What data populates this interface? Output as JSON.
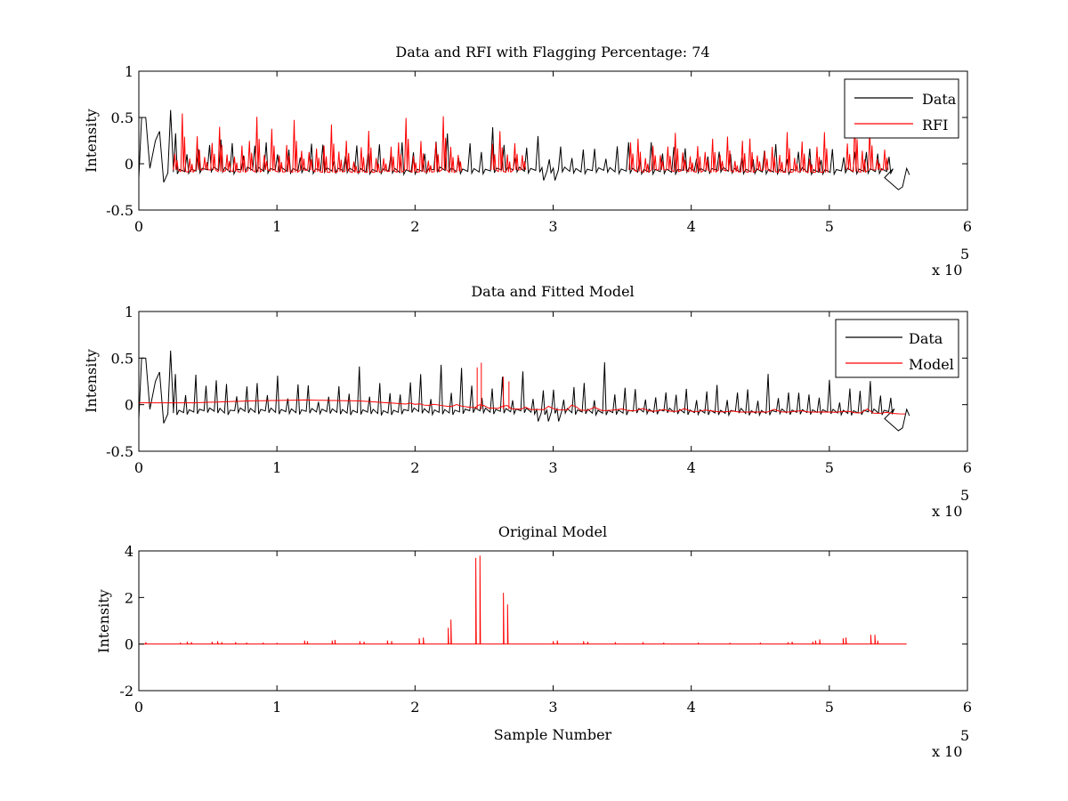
{
  "chart_data": [
    {
      "type": "line",
      "title": "Data and RFI with Flagging Percentage: 74",
      "xlabel": "",
      "ylabel": "Intensity",
      "xlim": [
        0,
        600000
      ],
      "ylim": [
        -0.5,
        1
      ],
      "xticks": [
        0,
        100000,
        200000,
        300000,
        400000,
        500000,
        600000
      ],
      "xtick_labels": [
        "0",
        "1",
        "2",
        "3",
        "4",
        "5",
        "6"
      ],
      "yticks": [
        -0.5,
        0,
        0.5,
        1
      ],
      "ytick_labels": [
        "-0.5",
        "0",
        "0.5",
        "1"
      ],
      "x_exponent_label": "x 10",
      "x_exponent_power": "5",
      "legend": "top-right",
      "grid": false,
      "series": [
        {
          "name": "Data",
          "color": "#000000",
          "points": [
            [
              0,
              -0.15
            ],
            [
              2000,
              0.5
            ],
            [
              5000,
              0.5
            ],
            [
              8000,
              -0.05
            ],
            [
              12000,
              0.25
            ],
            [
              15000,
              0.35
            ],
            [
              18000,
              -0.2
            ],
            [
              21000,
              -0.1
            ],
            [
              23000,
              0.58
            ],
            [
              25000,
              -0.05
            ],
            [
              240000,
              -0.1
            ],
            [
              260000,
              -0.08
            ],
            [
              270000,
              -0.1
            ],
            [
              285000,
              -0.05
            ],
            [
              288000,
              -0.18
            ],
            [
              292000,
              -0.2
            ],
            [
              300000,
              -0.1
            ],
            [
              330000,
              -0.12
            ],
            [
              340000,
              -0.1
            ],
            [
              355000,
              -0.1
            ],
            [
              540000,
              -0.15
            ],
            [
              550000,
              -0.28
            ],
            [
              553000,
              -0.25
            ],
            [
              556000,
              -0.05
            ],
            [
              558000,
              -0.12
            ]
          ],
          "spike_interval": 8200,
          "spike_heights": [
            0.3,
            0.15,
            0.25,
            0.2,
            0.35,
            0.28,
            0.18,
            0.22
          ]
        },
        {
          "name": "RFI",
          "color": "#ff0000",
          "segments": [
            [
              25000,
              235000
            ],
            [
              255000,
              280000
            ],
            [
              355000,
              500000
            ],
            [
              512000,
              540000
            ]
          ],
          "baseline": -0.08,
          "spike_interval": 5400,
          "spike_heights": [
            0.25,
            0.5,
            0.2,
            0.35,
            0.15,
            0.3,
            0.45,
            0.22,
            0.18,
            0.28
          ]
        }
      ]
    },
    {
      "type": "line",
      "title": "Data and Fitted Model",
      "xlabel": "",
      "ylabel": "Intensity",
      "xlim": [
        0,
        600000
      ],
      "ylim": [
        -0.5,
        1
      ],
      "xticks": [
        0,
        100000,
        200000,
        300000,
        400000,
        500000,
        600000
      ],
      "xtick_labels": [
        "0",
        "1",
        "2",
        "3",
        "4",
        "5",
        "6"
      ],
      "yticks": [
        -0.5,
        0,
        0.5,
        1
      ],
      "ytick_labels": [
        "-0.5",
        "0",
        "0.5",
        "1"
      ],
      "x_exponent_label": "x 10",
      "x_exponent_power": "5",
      "legend": "top-right",
      "grid": false,
      "series": [
        {
          "name": "Data",
          "color": "#000000",
          "points": [
            [
              0,
              -0.15
            ],
            [
              2000,
              0.5
            ],
            [
              5000,
              0.5
            ],
            [
              8000,
              -0.05
            ],
            [
              12000,
              0.25
            ],
            [
              15000,
              0.35
            ],
            [
              18000,
              -0.2
            ],
            [
              21000,
              -0.1
            ],
            [
              23000,
              0.58
            ],
            [
              25000,
              -0.05
            ],
            [
              240000,
              -0.1
            ],
            [
              260000,
              -0.08
            ],
            [
              270000,
              -0.1
            ],
            [
              285000,
              -0.05
            ],
            [
              288000,
              -0.18
            ],
            [
              292000,
              -0.2
            ],
            [
              300000,
              -0.1
            ],
            [
              330000,
              -0.12
            ],
            [
              340000,
              -0.1
            ],
            [
              355000,
              -0.1
            ],
            [
              540000,
              -0.15
            ],
            [
              550000,
              -0.28
            ],
            [
              553000,
              -0.25
            ],
            [
              556000,
              -0.05
            ],
            [
              558000,
              -0.12
            ]
          ],
          "spike_interval": 7400,
          "spike_heights": [
            0.3,
            0.15,
            0.42,
            0.2,
            0.35,
            0.28,
            0.18,
            0.22
          ]
        },
        {
          "name": "Model",
          "color": "#ff0000",
          "points": [
            [
              0,
              0.02
            ],
            [
              40000,
              0.02
            ],
            [
              80000,
              0.04
            ],
            [
              120000,
              0.05
            ],
            [
              160000,
              0.04
            ],
            [
              200000,
              0.0
            ],
            [
              240000,
              -0.03
            ],
            [
              280000,
              -0.05
            ],
            [
              320000,
              -0.06
            ],
            [
              380000,
              -0.07
            ],
            [
              440000,
              -0.08
            ],
            [
              500000,
              -0.08
            ],
            [
              555000,
              -0.1
            ]
          ],
          "peaks": [
            [
              245000,
              0.4
            ],
            [
              248000,
              0.45
            ],
            [
              264000,
              0.3
            ],
            [
              268000,
              0.25
            ]
          ]
        }
      ]
    },
    {
      "type": "line",
      "title": "Original Model",
      "xlabel": "Sample Number",
      "ylabel": "Intensity",
      "xlim": [
        0,
        600000
      ],
      "ylim": [
        -2,
        4
      ],
      "xticks": [
        0,
        100000,
        200000,
        300000,
        400000,
        500000,
        600000
      ],
      "xtick_labels": [
        "0",
        "1",
        "2",
        "3",
        "4",
        "5",
        "6"
      ],
      "yticks": [
        -2,
        0,
        2,
        4
      ],
      "ytick_labels": [
        "-2",
        "0",
        "2",
        "4"
      ],
      "x_exponent_label": "x 10",
      "x_exponent_power": "5",
      "legend": "none",
      "grid": false,
      "series": [
        {
          "color": "#ff0000",
          "baseline": 0,
          "x_end": 556000,
          "spikes": [
            [
              5000,
              0.08
            ],
            [
              30000,
              0.06
            ],
            [
              35000,
              0.1
            ],
            [
              38000,
              0.08
            ],
            [
              53000,
              0.1
            ],
            [
              57000,
              0.12
            ],
            [
              60000,
              0.08
            ],
            [
              70000,
              0.08
            ],
            [
              78000,
              0.06
            ],
            [
              90000,
              0.06
            ],
            [
              100000,
              0.05
            ],
            [
              120000,
              0.15
            ],
            [
              122000,
              0.12
            ],
            [
              140000,
              0.15
            ],
            [
              142000,
              0.18
            ],
            [
              160000,
              0.12
            ],
            [
              163000,
              0.1
            ],
            [
              180000,
              0.15
            ],
            [
              183000,
              0.12
            ],
            [
              203000,
              0.25
            ],
            [
              206000,
              0.28
            ],
            [
              224000,
              0.7
            ],
            [
              226000,
              1.05
            ],
            [
              244000,
              3.7
            ],
            [
              247000,
              3.8
            ],
            [
              264000,
              2.2
            ],
            [
              267000,
              1.7
            ],
            [
              300000,
              0.12
            ],
            [
              303000,
              0.15
            ],
            [
              322000,
              0.12
            ],
            [
              325000,
              0.1
            ],
            [
              345000,
              0.08
            ],
            [
              365000,
              0.08
            ],
            [
              380000,
              0.06
            ],
            [
              405000,
              0.06
            ],
            [
              428000,
              0.05
            ],
            [
              450000,
              0.06
            ],
            [
              470000,
              0.08
            ],
            [
              473000,
              0.1
            ],
            [
              488000,
              0.1
            ],
            [
              490000,
              0.15
            ],
            [
              493000,
              0.2
            ],
            [
              510000,
              0.25
            ],
            [
              512000,
              0.28
            ],
            [
              530000,
              0.4
            ],
            [
              533000,
              0.4
            ],
            [
              535000,
              0.15
            ]
          ]
        }
      ]
    }
  ]
}
